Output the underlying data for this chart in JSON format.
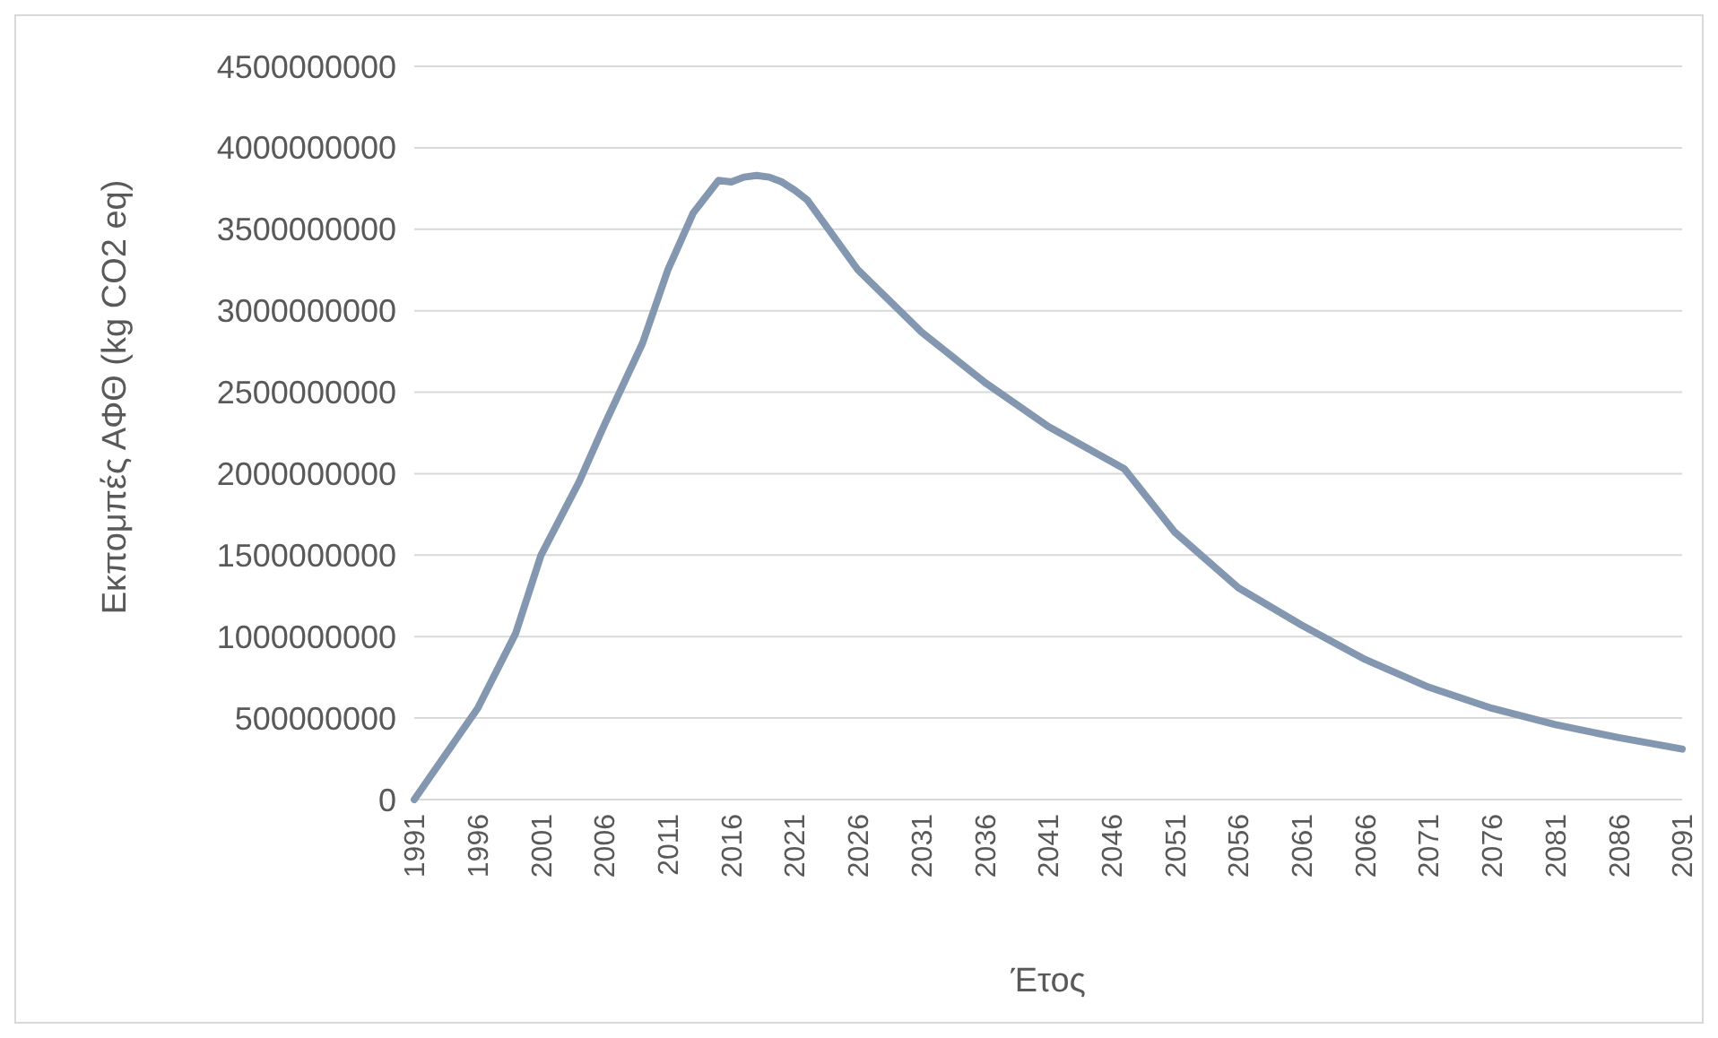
{
  "chart_data": {
    "type": "line",
    "xlabel": "Έτος",
    "ylabel": "Εκπομπές ΑΦΘ (kg CO2 eq)",
    "x": [
      1991,
      1996,
      1999,
      2001,
      2004,
      2006,
      2009,
      2011,
      2013,
      2015,
      2016,
      2017,
      2018,
      2019,
      2020,
      2021,
      2022,
      2026,
      2031,
      2036,
      2041,
      2047,
      2051,
      2056,
      2061,
      2066,
      2071,
      2076,
      2081,
      2086,
      2091
    ],
    "series": [
      {
        "color": "#8497b0",
        "values": [
          0,
          560000000,
          1020000000,
          1500000000,
          1950000000,
          2300000000,
          2800000000,
          3250000000,
          3600000000,
          3800000000,
          3790000000,
          3820000000,
          3830000000,
          3820000000,
          3790000000,
          3740000000,
          3680000000,
          3250000000,
          2870000000,
          2560000000,
          2290000000,
          2030000000,
          1640000000,
          1300000000,
          1070000000,
          860000000,
          690000000,
          560000000,
          460000000,
          380000000,
          310000000
        ]
      }
    ],
    "xlim": [
      1991,
      2091
    ],
    "xticks": [
      1991,
      1996,
      2001,
      2006,
      2011,
      2016,
      2021,
      2026,
      2031,
      2036,
      2041,
      2046,
      2051,
      2056,
      2061,
      2066,
      2071,
      2076,
      2081,
      2086,
      2091
    ],
    "ylim": [
      0,
      4500000000
    ],
    "yticks": [
      0,
      500000000,
      1000000000,
      1500000000,
      2000000000,
      2500000000,
      3000000000,
      3500000000,
      4000000000,
      4500000000
    ],
    "grid": "y",
    "marker": "none",
    "line_style": "solid"
  }
}
